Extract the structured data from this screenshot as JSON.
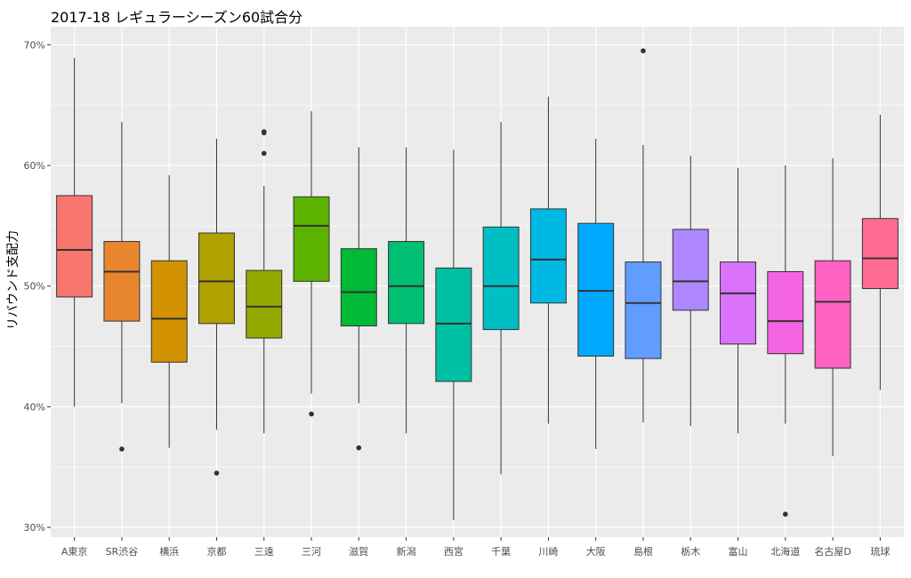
{
  "chart_data": {
    "type": "boxplot",
    "title": "2017-18 レギュラーシーズン60試合分",
    "xlabel": "",
    "ylabel": "リバウンド支配力",
    "ylim": [
      29.2,
      71.5
    ],
    "y_ticks": [
      30,
      40,
      50,
      60,
      70
    ],
    "y_tick_labels": [
      "30%",
      "40%",
      "50%",
      "60%",
      "70%"
    ],
    "grid": true,
    "legend": "none",
    "categories": [
      "A東京",
      "SR渋谷",
      "横浜",
      "京都",
      "三遠",
      "三河",
      "滋賀",
      "新潟",
      "西宮",
      "千葉",
      "川崎",
      "大阪",
      "島根",
      "栃木",
      "富山",
      "北海道",
      "名古屋D",
      "琉球"
    ],
    "boxes": [
      {
        "min": 40.0,
        "q1": 49.1,
        "median": 53.0,
        "q3": 57.5,
        "max": 68.9,
        "outliers": []
      },
      {
        "min": 40.3,
        "q1": 47.1,
        "median": 51.2,
        "q3": 53.7,
        "max": 63.6,
        "outliers": [
          36.5
        ]
      },
      {
        "min": 36.6,
        "q1": 43.7,
        "median": 47.3,
        "q3": 52.1,
        "max": 59.2,
        "outliers": []
      },
      {
        "min": 38.1,
        "q1": 46.9,
        "median": 50.4,
        "q3": 54.4,
        "max": 62.2,
        "outliers": [
          34.5
        ]
      },
      {
        "min": 37.8,
        "q1": 45.7,
        "median": 48.3,
        "q3": 51.3,
        "max": 58.3,
        "outliers": [
          61.0,
          62.7,
          62.8
        ]
      },
      {
        "min": 41.1,
        "q1": 50.4,
        "median": 55.0,
        "q3": 57.4,
        "max": 64.5,
        "outliers": [
          39.4
        ]
      },
      {
        "min": 40.3,
        "q1": 46.7,
        "median": 49.5,
        "q3": 53.1,
        "max": 61.5,
        "outliers": [
          36.6
        ]
      },
      {
        "min": 37.8,
        "q1": 46.9,
        "median": 50.0,
        "q3": 53.7,
        "max": 61.5,
        "outliers": []
      },
      {
        "min": 30.6,
        "q1": 42.1,
        "median": 46.9,
        "q3": 51.5,
        "max": 61.3,
        "outliers": []
      },
      {
        "min": 34.4,
        "q1": 46.4,
        "median": 50.0,
        "q3": 54.9,
        "max": 63.6,
        "outliers": []
      },
      {
        "min": 38.6,
        "q1": 48.6,
        "median": 52.2,
        "q3": 56.4,
        "max": 65.7,
        "outliers": []
      },
      {
        "min": 36.5,
        "q1": 44.2,
        "median": 49.6,
        "q3": 55.2,
        "max": 62.2,
        "outliers": []
      },
      {
        "min": 38.7,
        "q1": 44.0,
        "median": 48.6,
        "q3": 52.0,
        "max": 61.7,
        "outliers": [
          69.5
        ]
      },
      {
        "min": 38.4,
        "q1": 48.0,
        "median": 50.4,
        "q3": 54.7,
        "max": 60.8,
        "outliers": []
      },
      {
        "min": 37.8,
        "q1": 45.2,
        "median": 49.4,
        "q3": 52.0,
        "max": 59.8,
        "outliers": []
      },
      {
        "min": 38.6,
        "q1": 44.4,
        "median": 47.1,
        "q3": 51.2,
        "max": 60.0,
        "outliers": [
          31.1
        ]
      },
      {
        "min": 35.9,
        "q1": 43.2,
        "median": 48.7,
        "q3": 52.1,
        "max": 60.6,
        "outliers": []
      },
      {
        "min": 41.4,
        "q1": 49.8,
        "median": 52.3,
        "q3": 55.6,
        "max": 64.2,
        "outliers": []
      }
    ],
    "colors": [
      "#F8766D",
      "#E58700",
      "#C99800",
      "#A3A500",
      "#6BB100",
      "#00BA38",
      "#00BF7D",
      "#00C0AF",
      "#00BCD8",
      "#00B0F6",
      "#619CFF",
      "#B983FF",
      "#E76BF3",
      "#FD61D1",
      "#FF67A4"
    ],
    "box_colors": [
      "#F8766D",
      "#E8862E",
      "#D39200",
      "#B0A000",
      "#93A900",
      "#5BB300",
      "#00BA38",
      "#00BF72",
      "#00C0A3",
      "#00BFC4",
      "#00B9E3",
      "#00A9FF",
      "#619CFF",
      "#AE87FF",
      "#DB72FB",
      "#F564E3",
      "#FF61C3",
      "#FF6C91"
    ],
    "background_color": "#EBEBEB",
    "grid_color": "#FFFFFF"
  }
}
